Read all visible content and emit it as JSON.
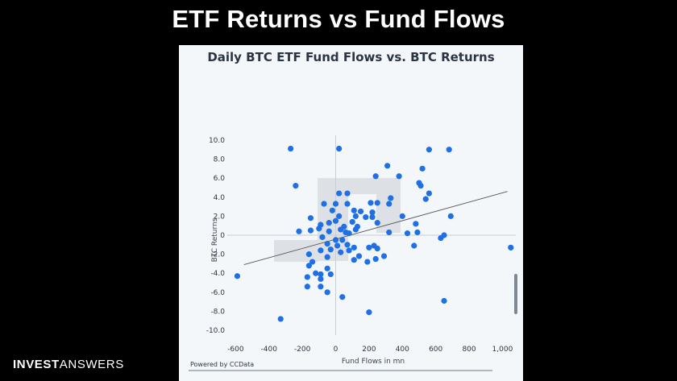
{
  "slide": {
    "title": "ETF Returns vs Fund Flows"
  },
  "brand": {
    "part1": "INVEST",
    "part2": "ANSWERS"
  },
  "footer": {
    "powered_by": "Powered by CCData"
  },
  "colors": {
    "background": "#000000",
    "panel": "#f4f7fa",
    "point": "#1f6fe5",
    "trend": "#555555"
  },
  "chart_data": {
    "type": "scatter",
    "title": "Daily BTC ETF Fund Flows vs. BTC Returns",
    "xlabel": "Fund Flows in mn",
    "ylabel": "BTC Returns",
    "xlim": [
      -650,
      1080
    ],
    "ylim": [
      -10.5,
      10.5
    ],
    "xticks": [
      -600,
      -400,
      -200,
      0,
      200,
      400,
      600,
      800,
      1000
    ],
    "xtick_labels": [
      "-600",
      "-400",
      "-200",
      "0",
      "200",
      "400",
      "600",
      "800",
      "1,000"
    ],
    "yticks": [
      10,
      8,
      6,
      4,
      2,
      0,
      -2,
      -4,
      -6,
      -8,
      -10
    ],
    "ytick_labels": [
      "10.0",
      "8.0",
      "6.0",
      "4.0",
      "2.0",
      "0",
      "-2.0",
      "-4.0",
      "-6.0",
      "-8.0",
      "-10.0"
    ],
    "grid": false,
    "trendline": {
      "x": [
        -550,
        1030
      ],
      "y": [
        -3.1,
        4.6
      ]
    },
    "points": [
      {
        "x": -270,
        "y": 9.1
      },
      {
        "x": 20,
        "y": 9.1
      },
      {
        "x": 560,
        "y": 9.0
      },
      {
        "x": 680,
        "y": 9.0
      },
      {
        "x": 310,
        "y": 7.3
      },
      {
        "x": 520,
        "y": 7.0
      },
      {
        "x": 240,
        "y": 6.2
      },
      {
        "x": 380,
        "y": 6.2
      },
      {
        "x": 500,
        "y": 5.5
      },
      {
        "x": 510,
        "y": 5.2
      },
      {
        "x": -240,
        "y": 5.2
      },
      {
        "x": 20,
        "y": 4.4
      },
      {
        "x": 70,
        "y": 4.4
      },
      {
        "x": 330,
        "y": 3.9
      },
      {
        "x": 560,
        "y": 4.4
      },
      {
        "x": 540,
        "y": 3.8
      },
      {
        "x": -70,
        "y": 3.3
      },
      {
        "x": 0,
        "y": 3.3
      },
      {
        "x": 70,
        "y": 3.3
      },
      {
        "x": 210,
        "y": 3.4
      },
      {
        "x": 250,
        "y": 3.4
      },
      {
        "x": 320,
        "y": 3.3
      },
      {
        "x": -20,
        "y": 2.6
      },
      {
        "x": 110,
        "y": 2.6
      },
      {
        "x": 150,
        "y": 2.5
      },
      {
        "x": 220,
        "y": 2.4
      },
      {
        "x": -150,
        "y": 1.8
      },
      {
        "x": 20,
        "y": 2.0
      },
      {
        "x": 120,
        "y": 2.0
      },
      {
        "x": 180,
        "y": 1.9
      },
      {
        "x": 220,
        "y": 1.9
      },
      {
        "x": 400,
        "y": 2.0
      },
      {
        "x": 690,
        "y": 2.0
      },
      {
        "x": -90,
        "y": 1.1
      },
      {
        "x": -40,
        "y": 1.3
      },
      {
        "x": 0,
        "y": 1.5
      },
      {
        "x": 100,
        "y": 1.4
      },
      {
        "x": 250,
        "y": 1.3
      },
      {
        "x": 480,
        "y": 1.2
      },
      {
        "x": -220,
        "y": 0.4
      },
      {
        "x": -150,
        "y": 0.5
      },
      {
        "x": -100,
        "y": 0.7
      },
      {
        "x": -40,
        "y": 0.4
      },
      {
        "x": 30,
        "y": 0.6
      },
      {
        "x": 50,
        "y": 0.9
      },
      {
        "x": 120,
        "y": 0.6
      },
      {
        "x": 130,
        "y": 0.9
      },
      {
        "x": 320,
        "y": 0.3
      },
      {
        "x": 430,
        "y": 0.2
      },
      {
        "x": 490,
        "y": 0.3
      },
      {
        "x": 650,
        "y": 0.0
      },
      {
        "x": 630,
        "y": -0.3
      },
      {
        "x": -80,
        "y": -0.2
      },
      {
        "x": 60,
        "y": 0.3
      },
      {
        "x": 80,
        "y": 0.2
      },
      {
        "x": 0,
        "y": -0.5
      },
      {
        "x": 40,
        "y": -0.5
      },
      {
        "x": -50,
        "y": -0.9
      },
      {
        "x": 10,
        "y": -1.1
      },
      {
        "x": 70,
        "y": -1.0
      },
      {
        "x": 110,
        "y": -1.3
      },
      {
        "x": 200,
        "y": -1.3
      },
      {
        "x": 230,
        "y": -1.1
      },
      {
        "x": 250,
        "y": -1.4
      },
      {
        "x": 470,
        "y": -1.1
      },
      {
        "x": 1050,
        "y": -1.3
      },
      {
        "x": -90,
        "y": -1.6
      },
      {
        "x": -30,
        "y": -1.5
      },
      {
        "x": 30,
        "y": -1.8
      },
      {
        "x": 80,
        "y": -1.6
      },
      {
        "x": 140,
        "y": -2.2
      },
      {
        "x": 290,
        "y": -2.2
      },
      {
        "x": -160,
        "y": -2.0
      },
      {
        "x": -50,
        "y": -2.3
      },
      {
        "x": -140,
        "y": -2.8
      },
      {
        "x": 110,
        "y": -2.6
      },
      {
        "x": 190,
        "y": -2.8
      },
      {
        "x": 240,
        "y": -2.5
      },
      {
        "x": -160,
        "y": -3.2
      },
      {
        "x": -50,
        "y": -3.5
      },
      {
        "x": -120,
        "y": -4.0
      },
      {
        "x": -90,
        "y": -4.1
      },
      {
        "x": -30,
        "y": -4.1
      },
      {
        "x": -170,
        "y": -4.4
      },
      {
        "x": -590,
        "y": -4.3
      },
      {
        "x": -90,
        "y": -4.6
      },
      {
        "x": -170,
        "y": -5.4
      },
      {
        "x": -90,
        "y": -5.4
      },
      {
        "x": -50,
        "y": -6.0
      },
      {
        "x": 40,
        "y": -6.5
      },
      {
        "x": 650,
        "y": -6.9
      },
      {
        "x": 200,
        "y": -8.1
      },
      {
        "x": -330,
        "y": -8.8
      }
    ]
  }
}
